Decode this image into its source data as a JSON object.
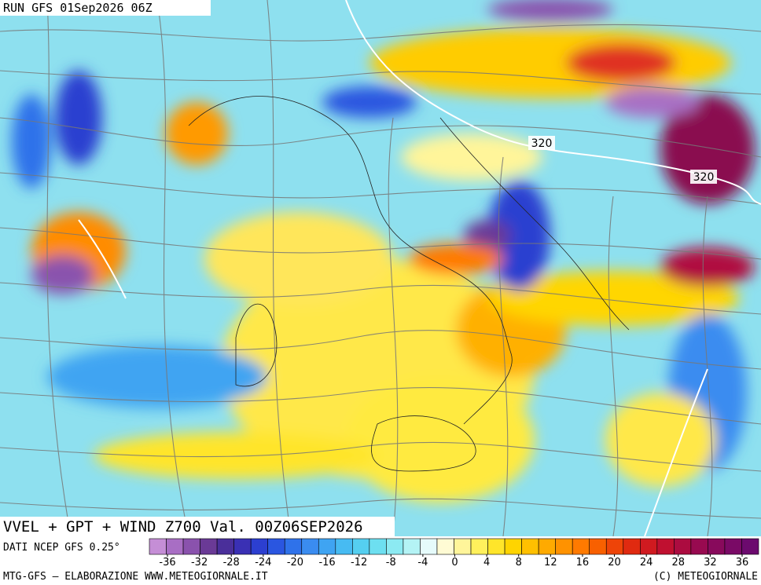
{
  "header": {
    "run": "RUN GFS 01Sep2026 06Z"
  },
  "map": {
    "contour_labels": [
      "320",
      "320"
    ],
    "caption": "VVEL + GPT + WIND Z700 Val. 00Z06SEP2026",
    "source": "DATI NCEP GFS 0.25°"
  },
  "colorbar": {
    "ticks": [
      -36,
      -32,
      -28,
      -24,
      -20,
      -16,
      -12,
      -8,
      -4,
      0,
      4,
      8,
      12,
      16,
      20,
      24,
      28,
      32,
      36
    ],
    "colors": [
      "#c58ed6",
      "#a86ec4",
      "#8a52ad",
      "#6a3a96",
      "#4a2f9a",
      "#3a30b4",
      "#2c3fd0",
      "#2a56e0",
      "#2f72ea",
      "#3a8cf0",
      "#3fa4f2",
      "#47bbf2",
      "#55cff0",
      "#6ddff0",
      "#8ceaf2",
      "#b4f3f5",
      "#e6fbfb",
      "#fffbd4",
      "#fff59a",
      "#fff05c",
      "#ffe52a",
      "#ffd400",
      "#ffc000",
      "#ffaa00",
      "#ff9200",
      "#ff7a00",
      "#f86000",
      "#ee4408",
      "#e02a10",
      "#d01a20",
      "#c01030",
      "#ac0c40",
      "#980a50",
      "#880a5c",
      "#7a0a66",
      "#6c0a6e"
    ]
  },
  "footer": {
    "left": "MTG-GFS — ELABORAZIONE WWW.METEOGIORNALE.IT",
    "right": "(C) METEOGIORNALE"
  }
}
